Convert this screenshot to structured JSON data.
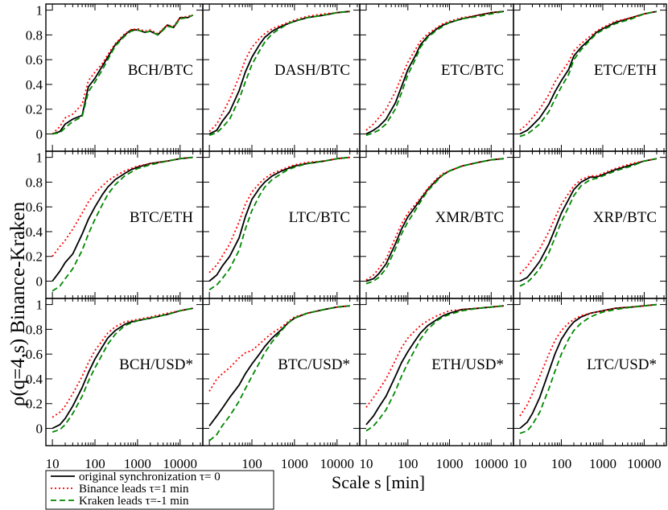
{
  "chart_data": {
    "type": "line",
    "ylabel": "ρ(q=4,s) Binance-Kraken",
    "xlabel": "Scale s [min]",
    "xscale": "log",
    "xlim": [
      8,
      30000
    ],
    "ylim": [
      -0.12,
      1.03
    ],
    "yticks": [
      0,
      0.2,
      0.4,
      0.6,
      0.8,
      1
    ],
    "ytick_labels": [
      "0",
      "0.2",
      "0.4",
      "0.6",
      "0.8",
      "1"
    ],
    "xtick_labels_per_column": [
      [
        "10",
        "100",
        "1000",
        "10000"
      ],
      [
        "100",
        "1000",
        "10000"
      ],
      [
        "10",
        "100",
        "1000",
        "10000"
      ],
      [
        "10",
        "100",
        "1000",
        "10000"
      ]
    ],
    "legend": {
      "placement": "bottom-left",
      "entries": [
        {
          "label": "original synchronization τ= 0",
          "color": "#000000",
          "dash": "solid"
        },
        {
          "label": "Binance leads τ=1 min",
          "color": "#ff0000",
          "dash": "dotted"
        },
        {
          "label": "Kraken leads τ=-1 min",
          "color": "#008800",
          "dash": "dashed"
        }
      ]
    },
    "grid": false,
    "x_common": [
      10,
      15,
      20,
      30,
      50,
      70,
      100,
      150,
      200,
      300,
      500,
      700,
      1000,
      2000,
      5000,
      10000,
      20000
    ],
    "panels": [
      {
        "label": "BCH/BTC",
        "x": [
          10,
          15,
          20,
          30,
          50,
          70,
          100,
          150,
          200,
          300,
          500,
          700,
          1000,
          1500,
          2000,
          3000,
          5000,
          7000,
          10000,
          15000,
          20000
        ],
        "series": [
          {
            "name": "original synchronization τ= 0",
            "values": [
              0.0,
              0.02,
              0.08,
              0.12,
              0.15,
              0.38,
              0.45,
              0.55,
              0.62,
              0.72,
              0.8,
              0.84,
              0.84,
              0.82,
              0.83,
              0.8,
              0.88,
              0.86,
              0.94,
              0.94,
              0.96
            ]
          },
          {
            "name": "Binance leads τ=1 min",
            "values": [
              0.0,
              0.06,
              0.13,
              0.16,
              0.24,
              0.43,
              0.5,
              0.57,
              0.64,
              0.73,
              0.81,
              0.84,
              0.85,
              0.83,
              0.84,
              0.81,
              0.88,
              0.87,
              0.94,
              0.95,
              0.96
            ]
          },
          {
            "name": "Kraken leads τ=-1 min",
            "values": [
              0.0,
              0.01,
              0.05,
              0.1,
              0.14,
              0.34,
              0.42,
              0.52,
              0.6,
              0.71,
              0.79,
              0.83,
              0.84,
              0.82,
              0.83,
              0.8,
              0.87,
              0.86,
              0.93,
              0.94,
              0.96
            ]
          }
        ]
      },
      {
        "label": "DASH/BTC",
        "series": [
          {
            "name": "original synchronization τ= 0",
            "values": [
              0.0,
              0.03,
              0.1,
              0.18,
              0.35,
              0.5,
              0.62,
              0.72,
              0.78,
              0.83,
              0.87,
              0.89,
              0.91,
              0.94,
              0.96,
              0.98,
              0.99
            ]
          },
          {
            "name": "Binance leads τ=1 min",
            "values": [
              0.02,
              0.08,
              0.16,
              0.28,
              0.46,
              0.6,
              0.7,
              0.77,
              0.81,
              0.85,
              0.88,
              0.9,
              0.92,
              0.95,
              0.97,
              0.98,
              0.99
            ]
          },
          {
            "name": "Kraken leads τ=-1 min",
            "values": [
              -0.01,
              0.01,
              0.05,
              0.12,
              0.28,
              0.42,
              0.56,
              0.67,
              0.74,
              0.81,
              0.86,
              0.89,
              0.91,
              0.94,
              0.96,
              0.98,
              0.99
            ]
          }
        ]
      },
      {
        "label": "ETC/BTC",
        "series": [
          {
            "name": "original synchronization τ= 0",
            "values": [
              0.0,
              0.03,
              0.06,
              0.12,
              0.25,
              0.38,
              0.52,
              0.63,
              0.72,
              0.79,
              0.85,
              0.88,
              0.9,
              0.93,
              0.96,
              0.98,
              0.99
            ]
          },
          {
            "name": "Binance leads τ=1 min",
            "values": [
              0.03,
              0.08,
              0.13,
              0.2,
              0.34,
              0.46,
              0.58,
              0.68,
              0.75,
              0.81,
              0.86,
              0.89,
              0.91,
              0.94,
              0.96,
              0.98,
              0.99
            ]
          },
          {
            "name": "Kraken leads τ=-1 min",
            "values": [
              -0.01,
              0.01,
              0.03,
              0.08,
              0.2,
              0.33,
              0.48,
              0.6,
              0.7,
              0.78,
              0.84,
              0.87,
              0.9,
              0.93,
              0.95,
              0.97,
              0.99
            ]
          }
        ]
      },
      {
        "label": "ETC/ETH",
        "series": [
          {
            "name": "original synchronization τ= 0",
            "values": [
              0.0,
              0.03,
              0.07,
              0.13,
              0.24,
              0.34,
              0.43,
              0.52,
              0.63,
              0.7,
              0.77,
              0.82,
              0.85,
              0.9,
              0.94,
              0.97,
              0.99
            ]
          },
          {
            "name": "Binance leads τ=1 min",
            "values": [
              0.03,
              0.08,
              0.13,
              0.2,
              0.32,
              0.42,
              0.5,
              0.58,
              0.67,
              0.73,
              0.79,
              0.83,
              0.86,
              0.91,
              0.94,
              0.97,
              0.99
            ]
          },
          {
            "name": "Kraken leads τ=-1 min",
            "values": [
              -0.02,
              0.0,
              0.03,
              0.08,
              0.18,
              0.28,
              0.38,
              0.48,
              0.6,
              0.68,
              0.76,
              0.81,
              0.84,
              0.89,
              0.93,
              0.97,
              0.99
            ]
          }
        ]
      },
      {
        "label": "BTC/ETH",
        "series": [
          {
            "name": "original synchronization τ= 0",
            "values": [
              0.0,
              0.08,
              0.15,
              0.22,
              0.38,
              0.5,
              0.6,
              0.7,
              0.76,
              0.82,
              0.87,
              0.9,
              0.92,
              0.95,
              0.97,
              0.99,
              1.0
            ]
          },
          {
            "name": "Binance leads τ=1 min",
            "values": [
              0.2,
              0.28,
              0.33,
              0.42,
              0.55,
              0.64,
              0.71,
              0.77,
              0.81,
              0.85,
              0.89,
              0.91,
              0.93,
              0.95,
              0.97,
              0.99,
              1.0
            ]
          },
          {
            "name": "Kraken leads τ=-1 min",
            "values": [
              -0.08,
              -0.04,
              0.02,
              0.1,
              0.25,
              0.38,
              0.5,
              0.62,
              0.7,
              0.78,
              0.85,
              0.88,
              0.91,
              0.94,
              0.97,
              0.99,
              1.0
            ]
          }
        ]
      },
      {
        "label": "LTC/BTC",
        "series": [
          {
            "name": "original synchronization τ= 0",
            "values": [
              0.0,
              0.05,
              0.12,
              0.2,
              0.35,
              0.52,
              0.66,
              0.75,
              0.8,
              0.85,
              0.89,
              0.91,
              0.93,
              0.95,
              0.97,
              0.99,
              1.0
            ]
          },
          {
            "name": "Binance leads τ=1 min",
            "values": [
              0.07,
              0.13,
              0.2,
              0.3,
              0.48,
              0.62,
              0.72,
              0.79,
              0.83,
              0.87,
              0.9,
              0.92,
              0.94,
              0.96,
              0.97,
              0.99,
              1.0
            ]
          },
          {
            "name": "Kraken leads τ=-1 min",
            "values": [
              -0.07,
              -0.03,
              0.02,
              0.1,
              0.25,
              0.42,
              0.57,
              0.69,
              0.76,
              0.82,
              0.87,
              0.9,
              0.92,
              0.95,
              0.97,
              0.99,
              1.0
            ]
          }
        ]
      },
      {
        "label": "XMR/BTC",
        "series": [
          {
            "name": "original synchronization τ= 0",
            "values": [
              0.0,
              0.02,
              0.06,
              0.14,
              0.3,
              0.42,
              0.52,
              0.6,
              0.66,
              0.74,
              0.82,
              0.86,
              0.89,
              0.93,
              0.96,
              0.98,
              0.99
            ]
          },
          {
            "name": "Binance leads τ=1 min",
            "values": [
              0.01,
              0.05,
              0.1,
              0.18,
              0.35,
              0.46,
              0.55,
              0.62,
              0.67,
              0.75,
              0.83,
              0.87,
              0.89,
              0.93,
              0.96,
              0.98,
              0.99
            ]
          },
          {
            "name": "Kraken leads τ=-1 min",
            "values": [
              -0.02,
              0.0,
              0.03,
              0.1,
              0.26,
              0.38,
              0.48,
              0.57,
              0.64,
              0.73,
              0.81,
              0.86,
              0.89,
              0.93,
              0.96,
              0.98,
              0.99
            ]
          }
        ]
      },
      {
        "label": "XRP/BTC",
        "series": [
          {
            "name": "original synchronization τ= 0",
            "values": [
              0.0,
              0.03,
              0.08,
              0.16,
              0.3,
              0.42,
              0.55,
              0.66,
              0.74,
              0.8,
              0.84,
              0.84,
              0.86,
              0.9,
              0.94,
              0.97,
              0.99
            ]
          },
          {
            "name": "Binance leads τ=1 min",
            "values": [
              0.06,
              0.12,
              0.18,
              0.26,
              0.4,
              0.51,
              0.62,
              0.71,
              0.77,
              0.82,
              0.85,
              0.85,
              0.87,
              0.91,
              0.95,
              0.97,
              0.99
            ]
          },
          {
            "name": "Kraken leads τ=-1 min",
            "values": [
              -0.04,
              -0.01,
              0.03,
              0.1,
              0.23,
              0.35,
              0.48,
              0.6,
              0.69,
              0.77,
              0.82,
              0.83,
              0.85,
              0.89,
              0.93,
              0.97,
              0.99
            ]
          }
        ]
      },
      {
        "label": "BCH/USD*",
        "series": [
          {
            "name": "original synchronization τ= 0",
            "values": [
              0.0,
              0.03,
              0.08,
              0.18,
              0.33,
              0.45,
              0.56,
              0.66,
              0.73,
              0.79,
              0.84,
              0.86,
              0.87,
              0.89,
              0.92,
              0.95,
              0.97
            ]
          },
          {
            "name": "Binance leads τ=1 min",
            "values": [
              0.09,
              0.13,
              0.18,
              0.28,
              0.42,
              0.53,
              0.63,
              0.71,
              0.77,
              0.82,
              0.86,
              0.87,
              0.88,
              0.9,
              0.93,
              0.95,
              0.97
            ]
          },
          {
            "name": "Kraken leads τ=-1 min",
            "values": [
              -0.03,
              -0.01,
              0.03,
              0.12,
              0.26,
              0.38,
              0.49,
              0.6,
              0.68,
              0.76,
              0.83,
              0.85,
              0.87,
              0.89,
              0.92,
              0.95,
              0.97
            ]
          }
        ]
      },
      {
        "label": "BTC/USD*",
        "series": [
          {
            "name": "original synchronization τ= 0",
            "values": [
              0.02,
              0.1,
              0.16,
              0.25,
              0.35,
              0.44,
              0.52,
              0.6,
              0.66,
              0.73,
              0.8,
              0.85,
              0.89,
              0.93,
              0.96,
              0.98,
              0.99
            ]
          },
          {
            "name": "Binance leads τ=1 min",
            "values": [
              0.3,
              0.4,
              0.44,
              0.49,
              0.57,
              0.61,
              0.63,
              0.68,
              0.72,
              0.77,
              0.82,
              0.86,
              0.9,
              0.93,
              0.96,
              0.98,
              0.99
            ]
          },
          {
            "name": "Kraken leads τ=-1 min",
            "values": [
              -0.1,
              -0.05,
              0.02,
              0.1,
              0.22,
              0.32,
              0.42,
              0.53,
              0.61,
              0.7,
              0.79,
              0.85,
              0.89,
              0.93,
              0.96,
              0.98,
              0.99
            ]
          }
        ]
      },
      {
        "label": "ETH/USD*",
        "series": [
          {
            "name": "original synchronization τ= 0",
            "values": [
              0.03,
              0.1,
              0.17,
              0.26,
              0.42,
              0.53,
              0.62,
              0.71,
              0.77,
              0.83,
              0.88,
              0.91,
              0.93,
              0.96,
              0.97,
              0.98,
              0.99
            ]
          },
          {
            "name": "Binance leads τ=1 min",
            "values": [
              0.17,
              0.25,
              0.31,
              0.4,
              0.55,
              0.65,
              0.73,
              0.79,
              0.83,
              0.87,
              0.91,
              0.93,
              0.95,
              0.96,
              0.97,
              0.98,
              0.99
            ]
          },
          {
            "name": "Kraken leads τ=-1 min",
            "values": [
              -0.02,
              0.02,
              0.07,
              0.15,
              0.3,
              0.42,
              0.53,
              0.64,
              0.72,
              0.8,
              0.87,
              0.9,
              0.92,
              0.95,
              0.97,
              0.98,
              0.99
            ]
          }
        ]
      },
      {
        "label": "LTC/USD*",
        "series": [
          {
            "name": "original synchronization τ= 0",
            "values": [
              0.0,
              0.05,
              0.12,
              0.25,
              0.46,
              0.6,
              0.72,
              0.81,
              0.86,
              0.9,
              0.93,
              0.94,
              0.95,
              0.97,
              0.98,
              0.99,
              1.0
            ]
          },
          {
            "name": "Binance leads τ=1 min",
            "values": [
              0.1,
              0.19,
              0.28,
              0.42,
              0.6,
              0.71,
              0.79,
              0.85,
              0.88,
              0.91,
              0.93,
              0.94,
              0.95,
              0.97,
              0.98,
              0.99,
              1.0
            ]
          },
          {
            "name": "Kraken leads τ=-1 min",
            "values": [
              -0.04,
              -0.02,
              0.03,
              0.13,
              0.32,
              0.46,
              0.6,
              0.72,
              0.79,
              0.85,
              0.9,
              0.92,
              0.94,
              0.96,
              0.98,
              0.99,
              1.0
            ]
          }
        ]
      }
    ]
  }
}
